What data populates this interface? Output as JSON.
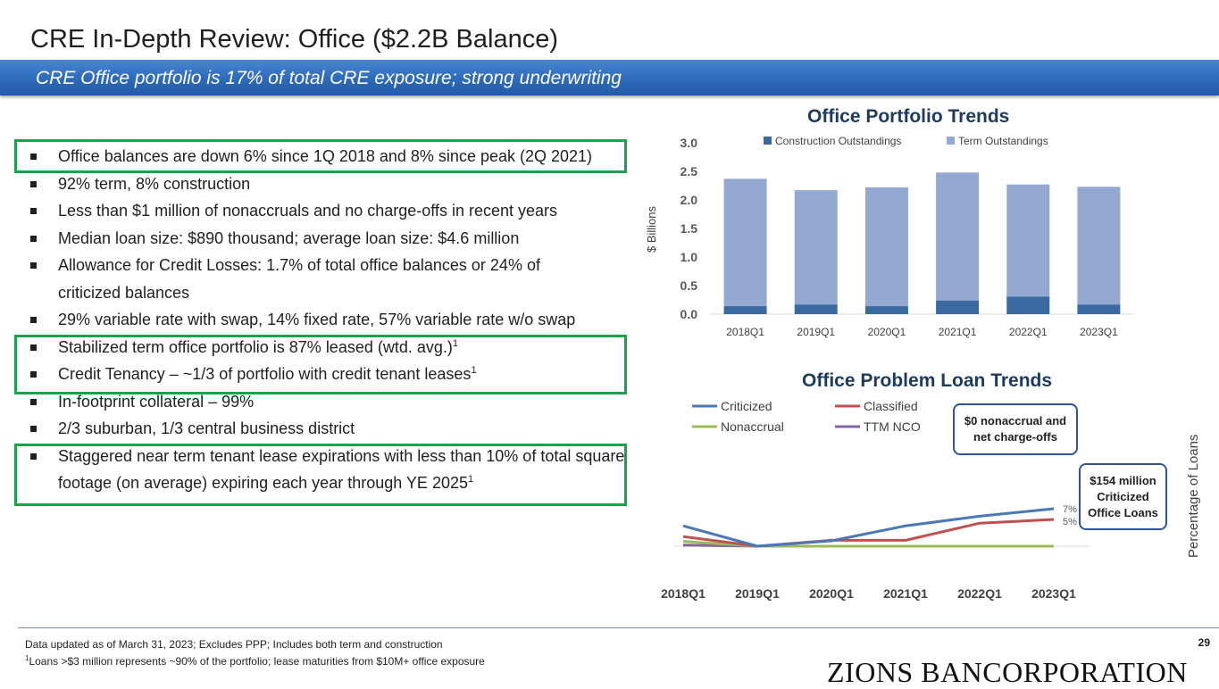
{
  "page": {
    "title": "CRE In-Depth Review: Office ($2.2B Balance)",
    "subtitle": "CRE Office portfolio is 17% of total CRE exposure; strong underwriting",
    "page_number": "29"
  },
  "bullets": [
    {
      "text": "Office balances are down 6% since 1Q 2018 and 8% since peak (2Q 2021)",
      "sup": ""
    },
    {
      "text": "92% term, 8% construction",
      "sup": ""
    },
    {
      "text": "Less than $1 million of nonaccruals and no charge-offs in recent years",
      "sup": ""
    },
    {
      "text": "Median loan size: $890 thousand; average loan size: $4.6 million",
      "sup": ""
    },
    {
      "text": "Allowance for Credit Losses: 1.7% of total office balances or 24% of criticized balances",
      "sup": ""
    },
    {
      "text": "29% variable rate with swap, 14% fixed rate, 57% variable rate w/o swap",
      "sup": ""
    },
    {
      "text": "Stabilized term office portfolio is 87% leased (wtd. avg.)",
      "sup": "1"
    },
    {
      "text": "Credit Tenancy – ~1/3 of portfolio with credit tenant leases",
      "sup": "1"
    },
    {
      "text": "In-footprint collateral – 99%",
      "sup": ""
    },
    {
      "text": "2/3 suburban, 1/3 central business district",
      "sup": ""
    },
    {
      "text": "Staggered near term tenant lease expirations with less than 10% of total square footage (on average) expiring each year through YE 2025",
      "sup": "1"
    }
  ],
  "chart_data": [
    {
      "type": "bar",
      "stacked": true,
      "title": "Office Portfolio Trends",
      "ylabel": "$ Billions",
      "ylim": [
        0,
        3.0
      ],
      "yticks": [
        "0.0",
        "0.5",
        "1.0",
        "1.5",
        "2.0",
        "2.5",
        "3.0"
      ],
      "categories": [
        "2018Q1",
        "2019Q1",
        "2020Q1",
        "2021Q1",
        "2022Q1",
        "2023Q1"
      ],
      "series": [
        {
          "name": "Construction Outstandings",
          "color": "#3b6aa1",
          "values": [
            0.14,
            0.17,
            0.14,
            0.24,
            0.31,
            0.17
          ]
        },
        {
          "name": "Term Outstandings",
          "color": "#93a9d2",
          "values": [
            2.23,
            2.0,
            2.08,
            2.24,
            1.96,
            2.06
          ]
        }
      ]
    },
    {
      "type": "line",
      "title": "Office Problem Loan Trends",
      "ylabel": "Percentage of Loans",
      "x": [
        "2018Q1",
        "2019Q1",
        "2020Q1",
        "2021Q1",
        "2022Q1",
        "2023Q1"
      ],
      "ylim": [
        0,
        7
      ],
      "series": [
        {
          "name": "Criticized",
          "color": "#4a78b5",
          "values": [
            3.8,
            0.0,
            1.0,
            3.8,
            5.6,
            7.0
          ]
        },
        {
          "name": "Classified",
          "color": "#c0504d",
          "values": [
            1.8,
            0.0,
            1.1,
            1.1,
            4.3,
            5.0
          ]
        },
        {
          "name": "Nonaccrual",
          "color": "#9bbb59",
          "values": [
            0.9,
            0.0,
            0.0,
            0.0,
            0.0,
            0.0
          ]
        },
        {
          "name": "TTM NCO",
          "color": "#8064a2",
          "values": [
            0.2,
            0.0,
            0.0,
            0.0,
            0.0,
            0.0
          ]
        }
      ],
      "end_labels": [
        "7%",
        "5%"
      ],
      "callouts": [
        "$0 nonaccrual and net charge-offs",
        "$154 million Criticized Office Loans"
      ]
    }
  ],
  "footer": {
    "note1": "Data updated as of March 31, 2023; Excludes PPP; Includes both term and construction",
    "note2_sup": "1",
    "note2": "Loans >$3 million represents ~90% of the portfolio; lease maturities from $10M+ office exposure",
    "logo": "ZIONS BANCORPORATION"
  }
}
